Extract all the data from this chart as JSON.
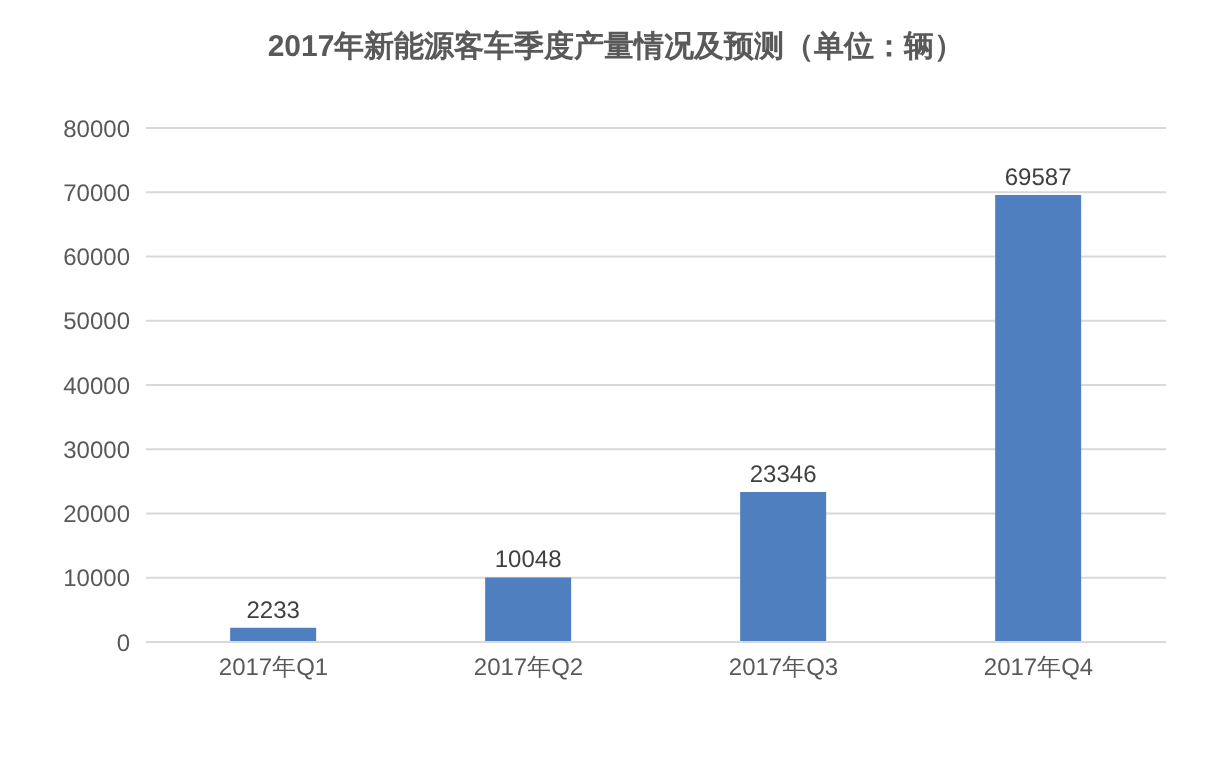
{
  "chart_data": {
    "type": "bar",
    "title": "2017年新能源客车季度产量情况及预测（单位：辆）",
    "categories": [
      "2017年Q1",
      "2017年Q2",
      "2017年Q3",
      "2017年Q4"
    ],
    "values": [
      2233,
      10048,
      23346,
      69587
    ],
    "color": "#4f7fbf",
    "ylim": [
      0,
      80000
    ],
    "yticks": [
      0,
      10000,
      20000,
      30000,
      40000,
      50000,
      60000,
      70000,
      80000
    ],
    "grid": "y",
    "data_labels": true
  }
}
